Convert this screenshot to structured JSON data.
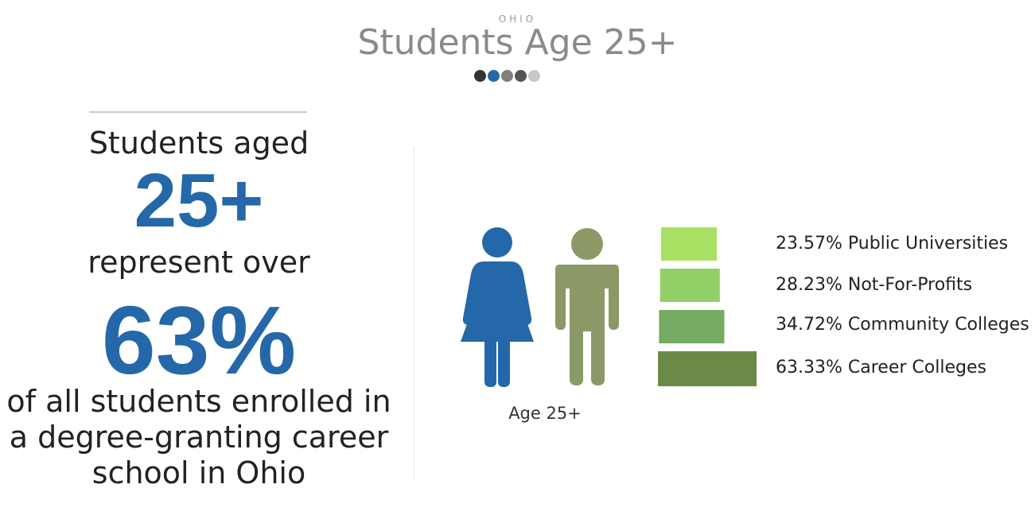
{
  "header": {
    "region": "OHIO",
    "title": "Students Age 25+",
    "dot_colors": [
      "#333333",
      "#2468a9",
      "#7f7f7f",
      "#555555",
      "#c8c8c8"
    ]
  },
  "left_panel": {
    "line1": "Students aged",
    "big_number1": "25+",
    "line2": "represent over",
    "big_number2": "63%",
    "line3a": "of all students enrolled in",
    "line3b": "a degree-granting career",
    "line3c": "school in Ohio"
  },
  "icons": {
    "female_color": "#2468a9",
    "male_color": "#8a9966",
    "label": "Age 25+"
  },
  "chart_data": {
    "type": "bar",
    "orientation": "horizontal",
    "categories": [
      "Public Universities",
      "Not-For-Profits",
      "Community Colleges",
      "Career Colleges"
    ],
    "values": [
      23.57,
      28.23,
      34.72,
      63.33
    ],
    "labels": [
      "23.57% Public Universities",
      "28.23% Not-For-Profits",
      "34.72% Community Colleges",
      "63.33% Career Colleges"
    ],
    "colors": [
      "#a8e063",
      "#93cf67",
      "#76ab63",
      "#6b8a48"
    ],
    "unit": "%"
  }
}
